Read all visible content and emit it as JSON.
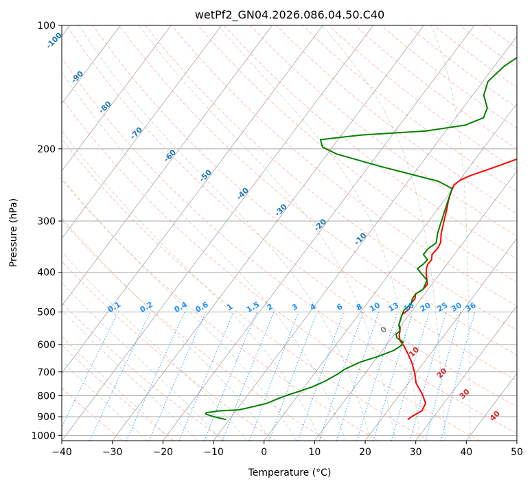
{
  "chart_data": {
    "type": "line",
    "title": "wetPf2_GN04.2026.086.04.50.C40",
    "xlabel": "Temperature (°C)",
    "ylabel": "Pressure (hPa)",
    "xlim": [
      -40,
      50
    ],
    "ylim": [
      1030,
      100
    ],
    "y_scale": "log",
    "x_ticks": [
      "−40",
      "−30",
      "−20",
      "−10",
      "0",
      "10",
      "20",
      "30",
      "40",
      "50"
    ],
    "y_ticks": [
      "100",
      "200",
      "300",
      "400",
      "500",
      "600",
      "700",
      "800",
      "900",
      "1000"
    ],
    "grid": true,
    "series": [
      {
        "key": "temperature",
        "color": "#ff0000",
        "points": [
          [
            25.3,
            915
          ],
          [
            25.6,
            900
          ],
          [
            26.8,
            870
          ],
          [
            26.4,
            835
          ],
          [
            24.5,
            795
          ],
          [
            21.5,
            745
          ],
          [
            19.8,
            705
          ],
          [
            17.5,
            662
          ],
          [
            15.4,
            630
          ],
          [
            13.6,
            605
          ],
          [
            12.1,
            588
          ],
          [
            11.1,
            570
          ],
          [
            10.6,
            556
          ],
          [
            10.1,
            545
          ],
          [
            9.5,
            538
          ],
          [
            9.0,
            522
          ],
          [
            8.6,
            507
          ],
          [
            9.2,
            492
          ],
          [
            8.7,
            478
          ],
          [
            8.8,
            464
          ],
          [
            8.2,
            452
          ],
          [
            9.0,
            440
          ],
          [
            9.1,
            428
          ],
          [
            8.4,
            418
          ],
          [
            7.4,
            405
          ],
          [
            6.6,
            392
          ],
          [
            6.2,
            382
          ],
          [
            6.3,
            373
          ],
          [
            5.6,
            362
          ],
          [
            5.8,
            350
          ],
          [
            5.5,
            338
          ],
          [
            4.3,
            322
          ],
          [
            3.5,
            308
          ],
          [
            2.7,
            295
          ],
          [
            1.9,
            282
          ],
          [
            0.9,
            268
          ],
          [
            0.1,
            255
          ],
          [
            -0.4,
            245
          ],
          [
            0.2,
            238
          ],
          [
            1.6,
            232
          ],
          [
            4.6,
            223
          ],
          [
            8.2,
            212
          ],
          [
            11.0,
            202
          ],
          [
            11.9,
            192
          ],
          [
            11.5,
            182
          ],
          [
            9.0,
            170
          ],
          [
            7.8,
            158
          ],
          [
            8.1,
            146
          ],
          [
            9.4,
            134
          ],
          [
            10.4,
            124
          ],
          [
            11.0,
            114
          ],
          [
            11.0,
            106
          ],
          [
            12.1,
            100
          ]
        ]
      },
      {
        "key": "dewpoint",
        "color": "#008000",
        "points": [
          [
            -10.6,
            915
          ],
          [
            -13.5,
            900
          ],
          [
            -15.5,
            887
          ],
          [
            -15.6,
            880
          ],
          [
            -13.5,
            872
          ],
          [
            -9.5,
            866
          ],
          [
            -7.4,
            852
          ],
          [
            -5.0,
            835
          ],
          [
            -3.6,
            815
          ],
          [
            -2.2,
            798
          ],
          [
            -0.5,
            782
          ],
          [
            1.5,
            762
          ],
          [
            3.2,
            738
          ],
          [
            4.7,
            708
          ],
          [
            5.3,
            690
          ],
          [
            7.4,
            662
          ],
          [
            10.0,
            642
          ],
          [
            12.3,
            620
          ],
          [
            13.0,
            604
          ],
          [
            12.9,
            592
          ],
          [
            11.0,
            578
          ],
          [
            10.3,
            566
          ],
          [
            10.6,
            556
          ],
          [
            9.5,
            538
          ],
          [
            8.6,
            507
          ],
          [
            8.3,
            494
          ],
          [
            8.8,
            479
          ],
          [
            8.3,
            465
          ],
          [
            8.2,
            452
          ],
          [
            9.0,
            440
          ],
          [
            8.4,
            418
          ],
          [
            6.6,
            405
          ],
          [
            4.8,
            392
          ],
          [
            5.3,
            382
          ],
          [
            5.5,
            373
          ],
          [
            3.9,
            362
          ],
          [
            4.0,
            350
          ],
          [
            4.7,
            339
          ],
          [
            3.6,
            322
          ],
          [
            2.9,
            308
          ],
          [
            2.0,
            290
          ],
          [
            0.8,
            268
          ],
          [
            -0.2,
            250
          ],
          [
            -4.0,
            240
          ],
          [
            -17.5,
            221
          ],
          [
            -28.1,
            206
          ],
          [
            -32.0,
            198
          ],
          [
            -33.5,
            190
          ],
          [
            -26.0,
            185
          ],
          [
            -14.0,
            181
          ],
          [
            -7.0,
            175
          ],
          [
            -4.5,
            168
          ],
          [
            -5.2,
            159
          ],
          [
            -7.8,
            148
          ],
          [
            -9.0,
            137
          ],
          [
            -8.1,
            126
          ],
          [
            -6.2,
            117
          ],
          [
            -4.7,
            108
          ],
          [
            -4.1,
            100
          ]
        ]
      }
    ],
    "isotherm_labels": [],
    "dry_adiabat_labels": [
      "-100",
      "-90",
      "-80",
      "-70",
      "-60",
      "-50",
      "-40",
      "-30",
      "-20",
      "-10"
    ],
    "moist_adiabat_labels": [
      "0",
      "10",
      "20",
      "30",
      "40"
    ],
    "mixing_ratio_labels": [
      "0.1",
      "0.2",
      "0.4",
      "0.6",
      "1",
      "1.5",
      "2",
      "3",
      "4",
      "6",
      "8",
      "10",
      "13",
      "16",
      "20",
      "25",
      "30",
      "36"
    ],
    "colors": {
      "dry_adiabat": "#ff8c69",
      "moist_adiabat": "#8fbc8f",
      "mixing_ratio": "#1e90ff",
      "skewed_isotherm": "#808080",
      "dry_adiabat_label": "#1f77b4",
      "moist_adiabat_label": "#d62728",
      "zero_label": "#808080"
    }
  }
}
